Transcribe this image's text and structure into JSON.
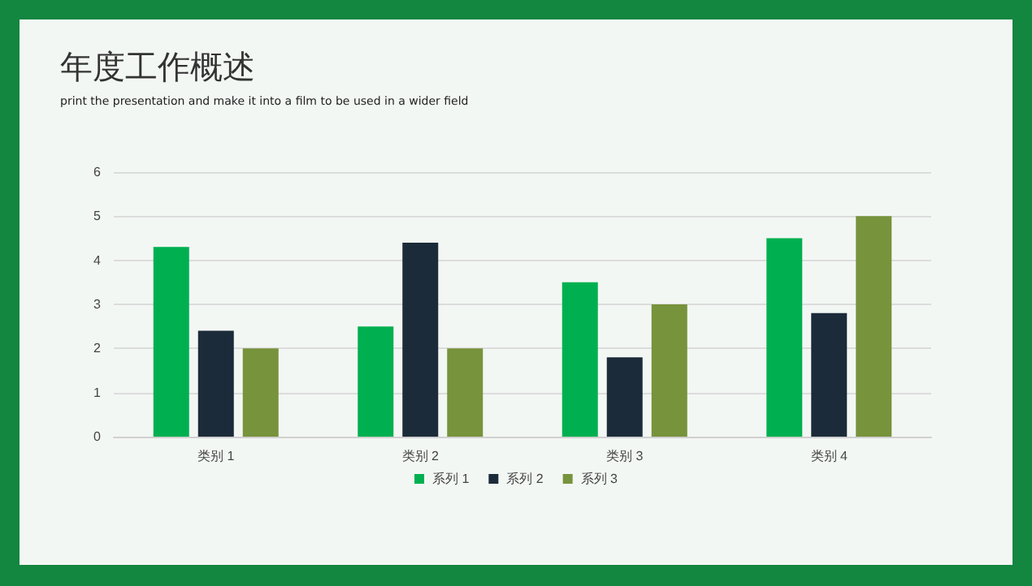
{
  "chart_data": {
    "type": "bar",
    "title": "年度工作概述",
    "subtitle": "print the presentation and make it into a film to be used in a wider field",
    "categories": [
      "类别 1",
      "类别 2",
      "类别 3",
      "类别 4"
    ],
    "series": [
      {
        "name": "系列 1",
        "color": "#00b050",
        "values": [
          4.3,
          2.5,
          3.5,
          4.5
        ]
      },
      {
        "name": "系列 2",
        "color": "#1c2b39",
        "values": [
          2.4,
          4.4,
          1.8,
          2.8
        ]
      },
      {
        "name": "系列 3",
        "color": "#77933c",
        "values": [
          2,
          2,
          3,
          5
        ]
      }
    ],
    "ylim": [
      0,
      6
    ],
    "yticks": [
      0,
      1,
      2,
      3,
      4,
      5,
      6
    ],
    "grid": "y",
    "legend": "bottom"
  }
}
